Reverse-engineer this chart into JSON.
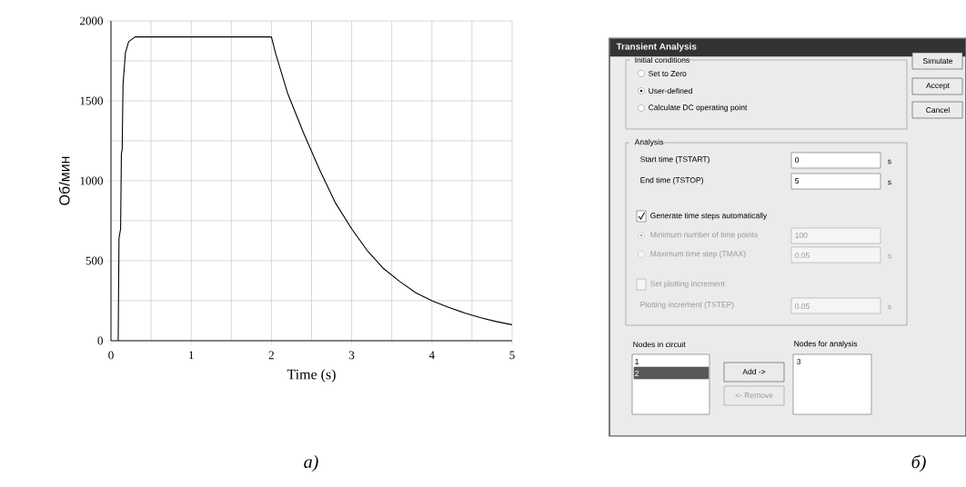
{
  "chart_data": [
    {
      "type": "line",
      "xlabel": "Time (s)",
      "ylabel": "Об/мин",
      "annotations": [
        "а)"
      ],
      "x": [
        0.09,
        0.1,
        0.12,
        0.13,
        0.14,
        0.15,
        0.18,
        0.22,
        0.3,
        2.0,
        2.05,
        2.2,
        2.4,
        2.6,
        2.8,
        3.0,
        3.2,
        3.4,
        3.6,
        3.8,
        4.0,
        4.2,
        4.4,
        4.6,
        4.8,
        5.0
      ],
      "values": [
        0,
        640,
        700,
        1170,
        1200,
        1600,
        1800,
        1870,
        1900,
        1900,
        1800,
        1550,
        1300,
        1070,
        860,
        700,
        560,
        450,
        370,
        300,
        250,
        210,
        175,
        145,
        120,
        100
      ],
      "color": "#000000",
      "xlim": [
        0,
        5
      ],
      "ylim": [
        0,
        2000
      ],
      "xticks": [
        0,
        1,
        2,
        3,
        4,
        5
      ],
      "yticks": [
        0,
        500,
        1000,
        1500,
        2000
      ],
      "grid": true
    },
    {
      "type": "other",
      "title": "Transient Analysis",
      "annotations": [
        "Initial conditions",
        "Set to Zero",
        "User-defined",
        "Calculate DC operating point",
        "Simulate",
        "Accept",
        "Cancel",
        "Analysis",
        "Start time (TSTART)",
        "0",
        "s",
        "End time (TSTOP)",
        "5",
        "s",
        "Generate time steps automatically",
        "Minimum number of time points",
        "100",
        "Maximum time step (TMAX)",
        "0.05",
        "s",
        "Set plotting increment",
        "Plotting increment (TSTEP)",
        "0.05",
        "s",
        "Nodes in circuit",
        "1",
        "2",
        "Add ->",
        "<- Remove",
        "Nodes for analysis",
        "3",
        "б)"
      ]
    }
  ]
}
